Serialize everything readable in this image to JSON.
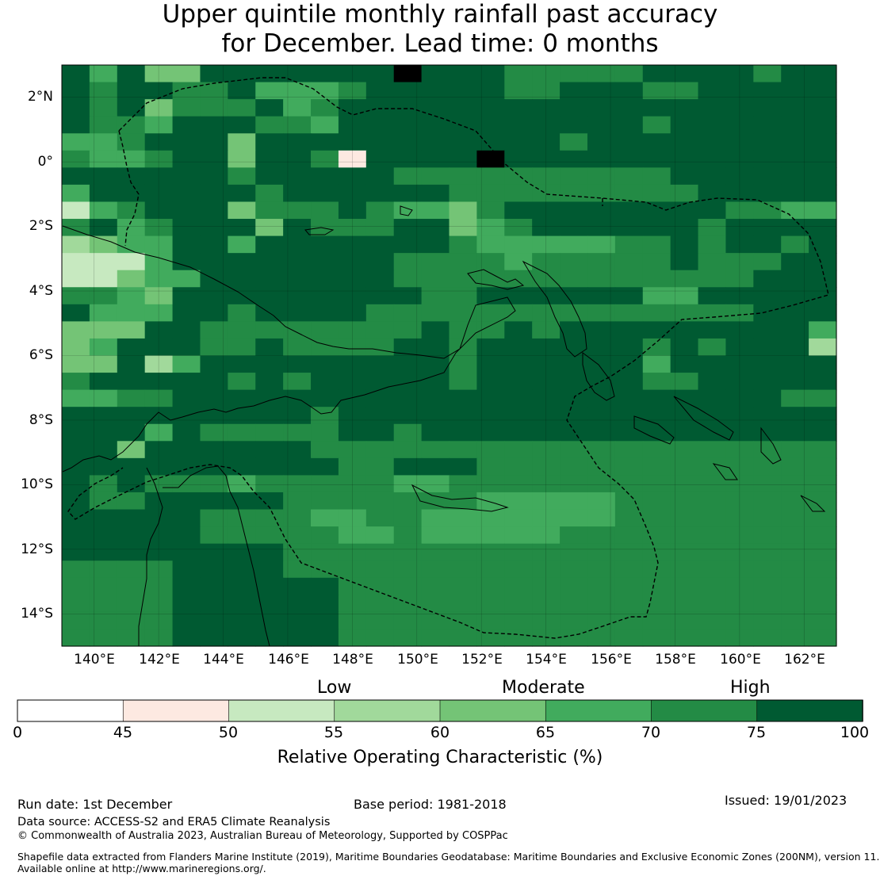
{
  "title": {
    "line1": "Upper quintile monthly rainfall past accuracy",
    "line2": "for December. Lead time: 0 months"
  },
  "map": {
    "lon_range": [
      139,
      163
    ],
    "lat_range": [
      -15,
      3
    ],
    "cell_size_deg": 0.8,
    "lon_ticks": [
      "140°E",
      "142°E",
      "144°E",
      "146°E",
      "148°E",
      "150°E",
      "152°E",
      "154°E",
      "156°E",
      "158°E",
      "160°E",
      "162°E"
    ],
    "lat_ticks": [
      "2°N",
      "0°",
      "2°S",
      "4°S",
      "6°S",
      "8°S",
      "10°S",
      "12°S",
      "14°S"
    ]
  },
  "legend": {
    "categories": [
      "Low",
      "Moderate",
      "High"
    ],
    "ticks": [
      "0",
      "45",
      "50",
      "55",
      "60",
      "65",
      "70",
      "75",
      "100"
    ],
    "bins": [
      {
        "range": "0-45",
        "color": "#ffffff"
      },
      {
        "range": "45-50",
        "color": "#fde9e1"
      },
      {
        "range": "50-55",
        "color": "#c7e9c0"
      },
      {
        "range": "55-60",
        "color": "#a1d99b"
      },
      {
        "range": "60-65",
        "color": "#74c476"
      },
      {
        "range": "65-70",
        "color": "#41ab5d"
      },
      {
        "range": "70-75",
        "color": "#238b45"
      },
      {
        "range": ">75",
        "color": "#005a32"
      }
    ],
    "title": "Relative Operating Characteristic (%)"
  },
  "footer": {
    "run_date": "Run date: 1st December",
    "base_period": "Base period: 1981-2018",
    "issued": "Issued: 19/01/2023",
    "data_source": "Data source: ACCESS-S2 and ERA5 Climate Reanalysis",
    "copyright": "© Commonwealth of Australia 2023, Australian Bureau of Meteorology, Supported by COSPPac",
    "shapefile_line1": "Shapefile data extracted from Flanders Marine Institute (2019), Maritime Boundaries Geodatabase: Maritime Boundaries and Exclusive Economic Zones (200NM), version 11.",
    "shapefile_line2": "Available online at http://www.marineregions.org/."
  },
  "grid_rows": [
    "7574477777778777666667777677",
    "7677667555677777667776677777",
    "7674666756777777777777777777",
    "7665777665777777777776777777",
    "5567774777777777776777777777",
    "6556774776177778777777777777",
    "7777776777776666666666777777",
    "5777777677777766666666677777",
    "2567774666765546777777776655",
    "6756777476667745677777767777",
    "3455775777777765555566767767",
    "2225777777776666566666766677",
    "2245577777776666666666666777",
    "6654777777777667777775577777",
    "7555776777766666666666666777",
    "4447766666666766767777777775",
    "4577766766667767777776767773",
    "4473577777777767777775777777",
    "6777776767777767777776677777",
    "5566777777777777777777777766",
    "7777777776777777777777777777",
    "7775766666776777777777777777",
    "7747777776666666666666666666",
    "7777777777667776666666666666",
    "7676665666665566666666666666",
    "7667777766666665555566666666",
    "7777766665566555555566666666",
    "7777766666556555556666666666",
    "7777777766666666666666666666",
    "6666777766666666666666666666",
    "6666777777666666666666666666",
    "6666777777666666666666666666",
    "6666777777666666666666666666",
    "6666777777666666666666666666"
  ]
}
